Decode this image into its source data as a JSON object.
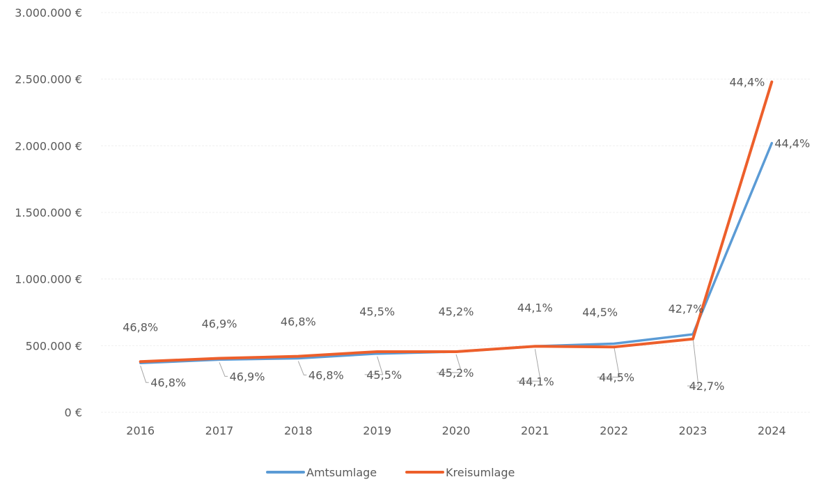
{
  "chart_data": {
    "type": "line",
    "x": [
      "2016",
      "2017",
      "2018",
      "2019",
      "2020",
      "2021",
      "2022",
      "2023",
      "2024"
    ],
    "ylim": [
      0,
      3000000
    ],
    "y_ticks": [
      "0 €",
      "500.000 €",
      "1.000.000 €",
      "1.500.000 €",
      "2.000.000 €",
      "2.500.000 €",
      "3.000.000 €"
    ],
    "grid": true,
    "legend": "bottom",
    "series": [
      {
        "name": "Amtsumlage",
        "color": "#5b9bd5",
        "values": [
          370000,
          395000,
          405000,
          440000,
          455000,
          495000,
          515000,
          585000,
          2020000
        ],
        "labels": [
          "46,8%",
          "46,9%",
          "46,8%",
          "45,5%",
          "45,2%",
          "44,1%",
          "44,5%",
          "42,7%",
          "44,4%"
        ]
      },
      {
        "name": "Kreisumlage",
        "color": "#ed5f2b",
        "values": [
          380000,
          405000,
          420000,
          455000,
          455000,
          495000,
          490000,
          550000,
          2480000
        ],
        "labels": [
          "46,8%",
          "46,9%",
          "46,8%",
          "45,5%",
          "45,2%",
          "44,1%",
          "44,5%",
          "42,7%",
          "44,4%"
        ]
      }
    ]
  }
}
